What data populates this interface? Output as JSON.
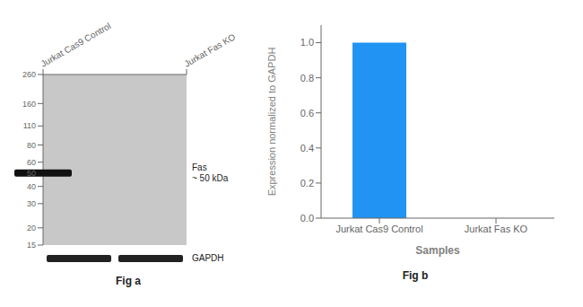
{
  "chart_data": [
    {
      "type": "blot",
      "title": "Fig a",
      "categories": [
        "Jurkat Cas9 Control",
        "Jurkat Fas KO"
      ],
      "log": "y",
      "ylim": [
        15,
        260
      ],
      "yticks": [
        260,
        160,
        110,
        80,
        60,
        50,
        40,
        30,
        20,
        15
      ],
      "color": "#c8c8c8",
      "series": [
        {
          "name": "Fas\n~ 50 kDa",
          "color": "#111111",
          "values": [
            50,
            null
          ]
        }
      ],
      "annotations": [
        {
          "text": "GAPDH",
          "color": "#222222"
        }
      ]
    },
    {
      "type": "bar",
      "title": "Fig b",
      "categories": [
        "Jurkat Cas9 Control",
        "Jurkat Fas KO"
      ],
      "values": [
        1.0,
        0.0
      ],
      "color": "#2194f3",
      "xlabel": "Samples",
      "ylabel": "Expression normalized to GAPDH",
      "ylim": [
        0,
        1.1
      ],
      "yticks": [
        {
          "value": 0,
          "label": "0.0"
        },
        {
          "value": 0.2,
          "label": "0.2"
        },
        {
          "value": 0.4,
          "label": "0.4"
        },
        {
          "value": 0.6,
          "label": "0.6"
        },
        {
          "value": 0.8,
          "label": "0.8"
        },
        {
          "value": 1.0,
          "label": "1.0"
        }
      ],
      "grid": false
    }
  ]
}
